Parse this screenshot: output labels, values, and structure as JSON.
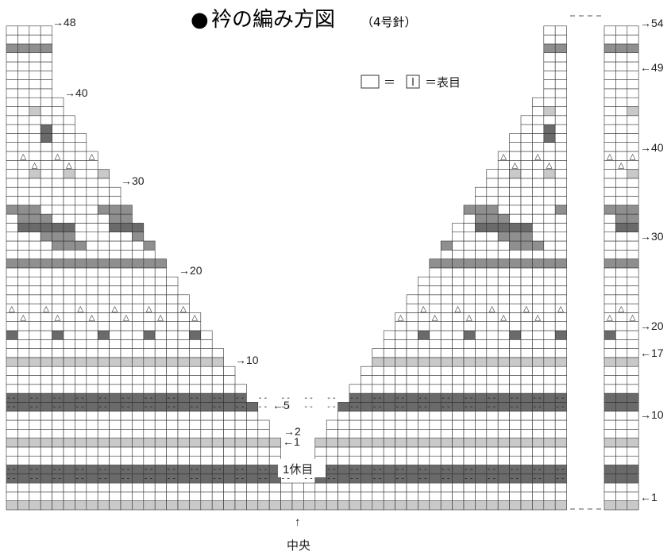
{
  "title": {
    "bullet": "●",
    "main": "衿の編み方図",
    "needle": "（4号針）"
  },
  "legend": {
    "equals": "＝",
    "meaning": "＝表目"
  },
  "row_labels": {
    "left": [
      "→48",
      "→40",
      "→30",
      "→20",
      "→10",
      "←5",
      "→2",
      "←1"
    ],
    "right": [
      "→54",
      "←49",
      "→40",
      "→30",
      "→20",
      "←17",
      "→10",
      "←1"
    ]
  },
  "center": {
    "rest_label": "1休目",
    "arrow": "↑",
    "center_label": "中央"
  },
  "colors": {
    "dark": "#6a6a6a",
    "mid": "#8f8f8f",
    "light": "#c9c9c9",
    "white": "#ffffff",
    "grid": "#333333"
  },
  "symbols": {
    "triangle": "△",
    "dash": "- -"
  }
}
